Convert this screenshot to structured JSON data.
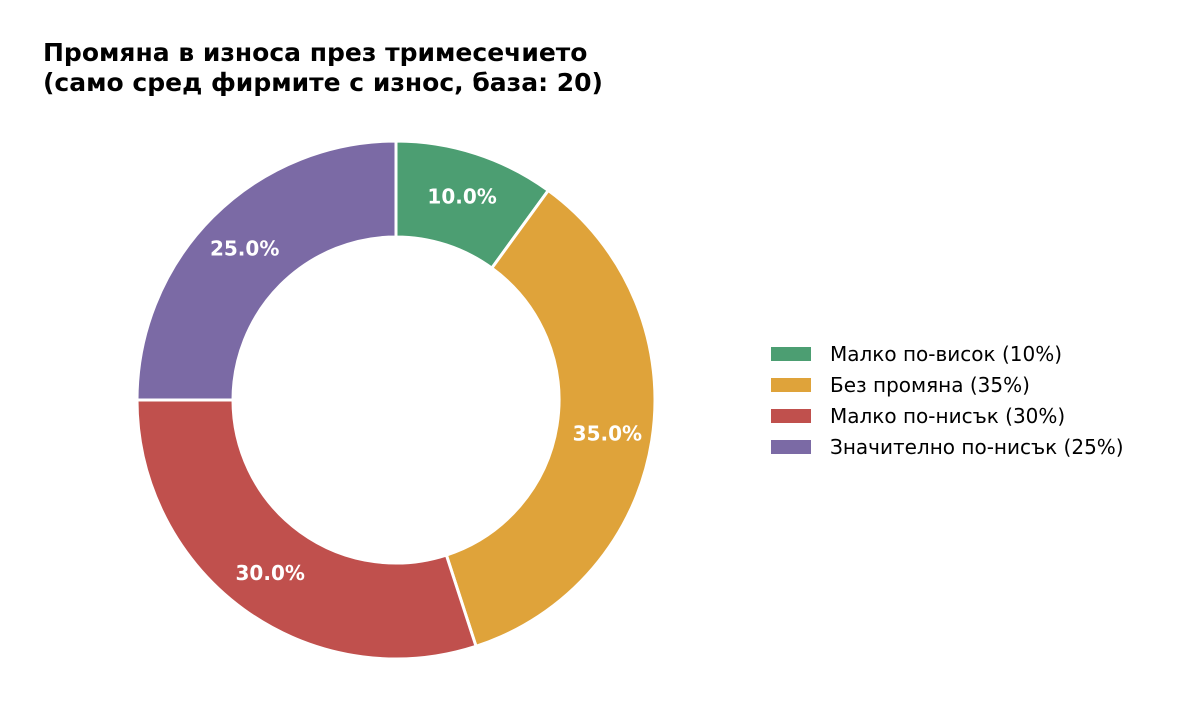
{
  "chart_data": {
    "type": "pie",
    "variant": "donut",
    "title": "Промяна в износа през тримесечието (само сред фирмите с износ, база: 20)",
    "title_lines": [
      "Промяна в износа през тримесечието",
      "(само сред фирмите с износ, база: 20)"
    ],
    "start_angle": "12 o'clock",
    "direction": "clockwise",
    "legend_position": "right",
    "slices": [
      {
        "label": "Малко по-висок (10%)",
        "value": 10.0,
        "display": "10.0%",
        "color": "#4c9e72"
      },
      {
        "label": "Без промяна (35%)",
        "value": 35.0,
        "display": "35.0%",
        "color": "#dfa33a"
      },
      {
        "label": "Малко по-нисък (30%)",
        "value": 30.0,
        "display": "30.0%",
        "color": "#c0504d"
      },
      {
        "label": "Значително по-нисък (25%)",
        "value": 25.0,
        "display": "25.0%",
        "color": "#7b6aa5"
      }
    ]
  }
}
